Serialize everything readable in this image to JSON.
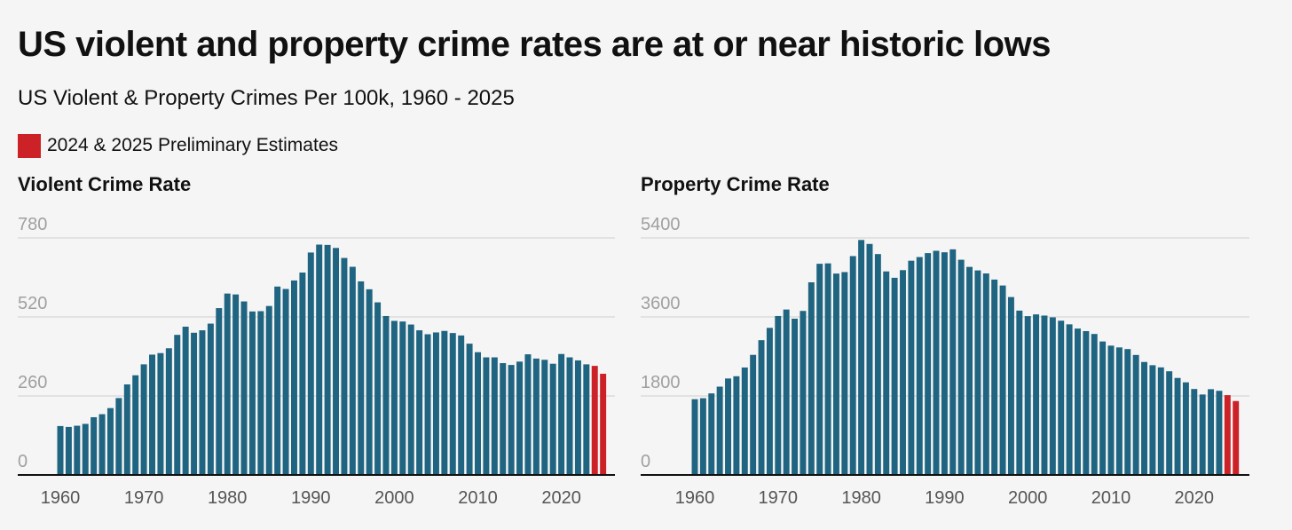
{
  "title": "US violent and property crime rates are at or near historic lows",
  "subtitle": "US Violent & Property Crimes Per 100k, 1960 - 2025",
  "legend": {
    "label": "2024 & 2025 Preliminary Estimates",
    "color": "#cc2227"
  },
  "colors": {
    "bar": "#1f6480",
    "estimate": "#cc2227",
    "axis": "#111111",
    "grid": "#dcdcdc"
  },
  "chart_data": [
    {
      "type": "bar",
      "title": "Violent Crime Rate",
      "xlabel": "",
      "ylabel": "",
      "ylim": [
        0,
        780
      ],
      "yticks": [
        0,
        260,
        520,
        780
      ],
      "xticks": [
        1960,
        1970,
        1980,
        1990,
        2000,
        2010,
        2020
      ],
      "x": [
        1960,
        1961,
        1962,
        1963,
        1964,
        1965,
        1966,
        1967,
        1968,
        1969,
        1970,
        1971,
        1972,
        1973,
        1974,
        1975,
        1976,
        1977,
        1978,
        1979,
        1980,
        1981,
        1982,
        1983,
        1984,
        1985,
        1986,
        1987,
        1988,
        1989,
        1990,
        1991,
        1992,
        1993,
        1994,
        1995,
        1996,
        1997,
        1998,
        1999,
        2000,
        2001,
        2002,
        2003,
        2004,
        2005,
        2006,
        2007,
        2008,
        2009,
        2010,
        2011,
        2012,
        2013,
        2014,
        2015,
        2016,
        2017,
        2018,
        2019,
        2020,
        2021,
        2022,
        2023,
        2024,
        2025
      ],
      "values": [
        161,
        158,
        162,
        168,
        190,
        200,
        220,
        253,
        298,
        328,
        364,
        396,
        401,
        417,
        461,
        488,
        468,
        476,
        498,
        549,
        597,
        594,
        571,
        538,
        539,
        556,
        620,
        612,
        640,
        666,
        732,
        758,
        757,
        747,
        714,
        685,
        637,
        611,
        568,
        523,
        507,
        505,
        495,
        476,
        463,
        469,
        474,
        467,
        459,
        432,
        404,
        387,
        387,
        368,
        362,
        373,
        397,
        383,
        379,
        366,
        398,
        387,
        377,
        364,
        359,
        333
      ],
      "estimates": [
        2024,
        2025
      ]
    },
    {
      "type": "bar",
      "title": "Property Crime Rate",
      "xlabel": "",
      "ylabel": "",
      "ylim": [
        0,
        5400
      ],
      "yticks": [
        0,
        1800,
        3600,
        5400
      ],
      "xticks": [
        1960,
        1970,
        1980,
        1990,
        2000,
        2010,
        2020
      ],
      "x": [
        1960,
        1961,
        1962,
        1963,
        1964,
        1965,
        1966,
        1967,
        1968,
        1969,
        1970,
        1971,
        1972,
        1973,
        1974,
        1975,
        1976,
        1977,
        1978,
        1979,
        1980,
        1981,
        1982,
        1983,
        1984,
        1985,
        1986,
        1987,
        1988,
        1989,
        1990,
        1991,
        1992,
        1993,
        1994,
        1995,
        1996,
        1997,
        1998,
        1999,
        2000,
        2001,
        2002,
        2003,
        2004,
        2005,
        2006,
        2007,
        2008,
        2009,
        2010,
        2011,
        2012,
        2013,
        2014,
        2015,
        2016,
        2017,
        2018,
        2019,
        2020,
        2021,
        2022,
        2023,
        2024,
        2025
      ],
      "values": [
        1726,
        1748,
        1858,
        2012,
        2198,
        2249,
        2448,
        2736,
        3071,
        3351,
        3621,
        3769,
        3560,
        3737,
        4389,
        4811,
        4820,
        4588,
        4622,
        4986,
        5353,
        5263,
        5032,
        4637,
        4492,
        4666,
        4881,
        4964,
        5054,
        5107,
        5073,
        5140,
        4903,
        4740,
        4660,
        4591,
        4451,
        4316,
        4053,
        3744,
        3618,
        3658,
        3631,
        3591,
        3514,
        3431,
        3335,
        3277,
        3212,
        3041,
        2946,
        2906,
        2868,
        2734,
        2574,
        2500,
        2451,
        2362,
        2210,
        2110,
        1958,
        1833,
        1954,
        1917,
        1818,
        1684
      ],
      "estimates": [
        2024,
        2025
      ]
    }
  ]
}
